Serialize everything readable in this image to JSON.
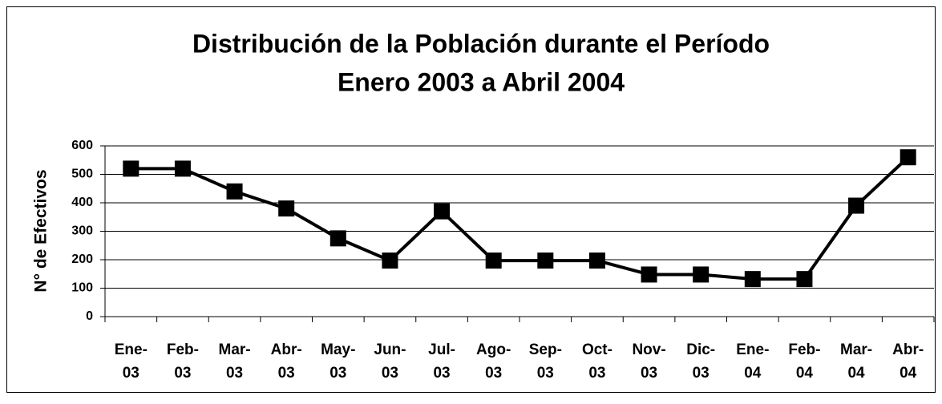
{
  "chart_data": {
    "type": "line",
    "title": [
      "Distribución de la Población durante el Período",
      "Enero 2003 a Abril 2004"
    ],
    "y_label": "N° de Efectivos",
    "categories": [
      [
        "Ene-",
        "03"
      ],
      [
        "Feb-",
        "03"
      ],
      [
        "Mar-",
        "03"
      ],
      [
        "Abr-",
        "03"
      ],
      [
        "May-",
        "03"
      ],
      [
        "Jun-",
        "03"
      ],
      [
        "Jul-",
        "03"
      ],
      [
        "Ago-",
        "03"
      ],
      [
        "Sep-",
        "03"
      ],
      [
        "Oct-",
        "03"
      ],
      [
        "Nov-",
        "03"
      ],
      [
        "Dic-",
        "03"
      ],
      [
        "Ene-",
        "04"
      ],
      [
        "Feb-",
        "04"
      ],
      [
        "Mar-",
        "04"
      ],
      [
        "Abr-",
        "04"
      ]
    ],
    "values": [
      520,
      520,
      440,
      380,
      275,
      197,
      370,
      197,
      197,
      197,
      148,
      148,
      132,
      132,
      390,
      560
    ],
    "color": "#000000",
    "ylim": [
      0,
      600
    ],
    "yticks": [
      0,
      100,
      200,
      300,
      400,
      500,
      600
    ],
    "grid": true
  }
}
